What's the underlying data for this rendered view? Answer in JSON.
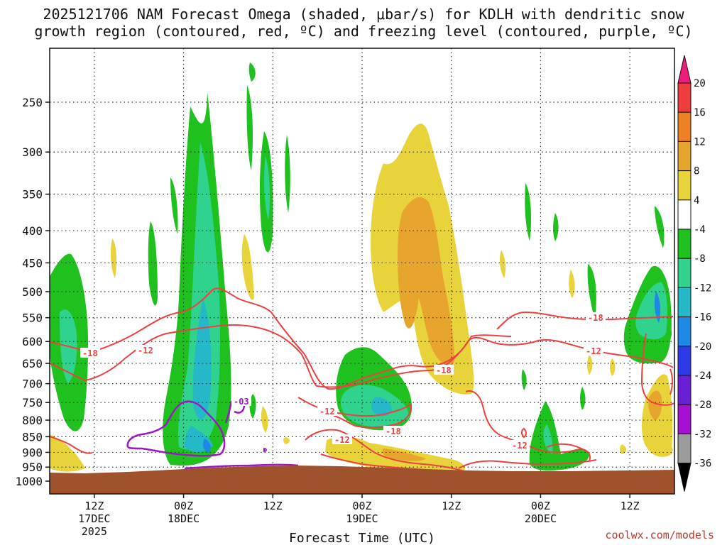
{
  "chart_data": {
    "type": "heatmap",
    "title_line1": "2025121706 NAM Forecast Omega (shaded, μbar/s) for KDLH with dendritic snow",
    "title_line2": "growth region (contoured, red, ºC) and freezing level (contoured, purple, ºC)",
    "xlabel": "Forecast Time (UTC)",
    "ylabel": "",
    "y_axis": "pressure (hPa), inverted",
    "y_ticks": [
      250,
      300,
      350,
      400,
      450,
      500,
      550,
      600,
      650,
      700,
      750,
      800,
      850,
      900,
      950,
      1000
    ],
    "ylim": [
      1000,
      200
    ],
    "x_ticks": [
      {
        "hours": 6,
        "label1": "12Z",
        "label2": "17DEC",
        "label3": "2025"
      },
      {
        "hours": 18,
        "label1": "00Z",
        "label2": "18DEC",
        "label3": ""
      },
      {
        "hours": 30,
        "label1": "12Z",
        "label2": "",
        "label3": ""
      },
      {
        "hours": 42,
        "label1": "00Z",
        "label2": "19DEC",
        "label3": ""
      },
      {
        "hours": 54,
        "label1": "12Z",
        "label2": "",
        "label3": ""
      },
      {
        "hours": 66,
        "label1": "00Z",
        "label2": "20DEC",
        "label3": ""
      },
      {
        "hours": 78,
        "label1": "12Z",
        "label2": "",
        "label3": ""
      }
    ],
    "xlim": [
      0,
      84
    ],
    "grid": true,
    "colorbar": {
      "labels": [
        "20",
        "16",
        "12",
        "8",
        "4",
        "-4",
        "-8",
        "-12",
        "-16",
        "-20",
        "-24",
        "-28",
        "-32",
        "-36"
      ],
      "colors": [
        "#ee1c7a",
        "#ef3c3c",
        "#ef7f25",
        "#e8a52e",
        "#e8d43a",
        "#ffffff",
        "#1fc11f",
        "#2fd38d",
        "#24b8c8",
        "#1e88e6",
        "#2d3ae8",
        "#6b1fd4",
        "#a50fcf",
        "#9b9b9b",
        "#000000"
      ]
    },
    "ground_color": "#a0522d",
    "contour_labels_red": [
      "-18",
      "-12",
      "-12",
      "-18",
      "-12",
      "-18",
      "-12",
      "-12",
      "-18",
      "-12"
    ],
    "contour_labels_purple": [
      "-03"
    ]
  },
  "credit": "coolwx.com/models"
}
